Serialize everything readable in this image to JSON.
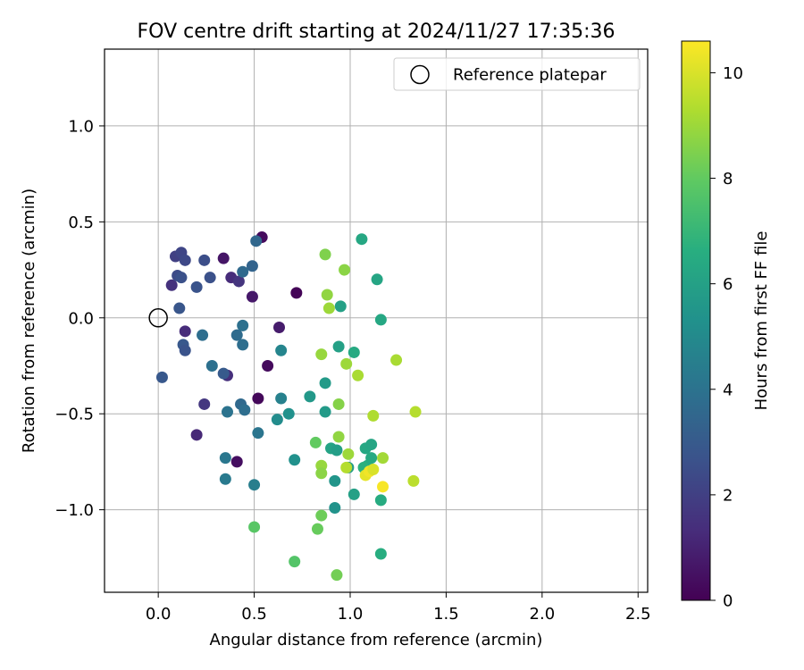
{
  "chart_data": {
    "type": "scatter",
    "title": "FOV centre drift starting at 2024/11/27 17:35:36",
    "xlabel": "Angular distance from reference (arcmin)",
    "ylabel": "Rotation from reference (arcmin)",
    "xlim": [
      -0.28,
      2.55
    ],
    "ylim": [
      -1.43,
      1.4
    ],
    "xticks": [
      0.0,
      0.5,
      1.0,
      1.5,
      2.0,
      2.5
    ],
    "xtick_labels": [
      "0.0",
      "0.5",
      "1.0",
      "1.5",
      "2.0",
      "2.5"
    ],
    "yticks": [
      -1.0,
      -0.5,
      0.0,
      0.5,
      1.0
    ],
    "ytick_labels": [
      "−1.0",
      "−0.5",
      "0.0",
      "0.5",
      "1.0"
    ],
    "grid": true,
    "legend": {
      "placement": "top-right",
      "entries": [
        "Reference platepar"
      ]
    },
    "reference": {
      "x": 0.0,
      "y": 0.0,
      "marker": "open-circle"
    },
    "colorbar": {
      "label": "Hours from first FF file",
      "colormap": "viridis",
      "range": [
        0,
        10.6
      ],
      "ticks": [
        0,
        2,
        4,
        6,
        8,
        10
      ],
      "tick_labels": [
        "0",
        "2",
        "4",
        "6",
        "8",
        "10"
      ]
    },
    "points": [
      {
        "x": 0.54,
        "y": 0.42,
        "c": 0.3
      },
      {
        "x": 0.72,
        "y": 0.13,
        "c": 0.1
      },
      {
        "x": 0.34,
        "y": 0.31,
        "c": 0.6
      },
      {
        "x": 0.49,
        "y": 0.11,
        "c": 0.7
      },
      {
        "x": 0.63,
        "y": -0.05,
        "c": 0.8
      },
      {
        "x": 0.57,
        "y": -0.25,
        "c": 0.3
      },
      {
        "x": 0.52,
        "y": -0.42,
        "c": 0.2
      },
      {
        "x": 0.41,
        "y": -0.75,
        "c": 0.4
      },
      {
        "x": 0.2,
        "y": -0.61,
        "c": 1.2
      },
      {
        "x": 0.36,
        "y": -0.3,
        "c": 1.4
      },
      {
        "x": 0.14,
        "y": -0.07,
        "c": 1.3
      },
      {
        "x": 0.07,
        "y": 0.17,
        "c": 1.5
      },
      {
        "x": 0.38,
        "y": 0.21,
        "c": 1.3
      },
      {
        "x": 0.42,
        "y": 0.19,
        "c": 1.6
      },
      {
        "x": 0.24,
        "y": -0.45,
        "c": 1.7
      },
      {
        "x": 0.09,
        "y": 0.32,
        "c": 2.0
      },
      {
        "x": 0.12,
        "y": 0.34,
        "c": 2.2
      },
      {
        "x": 0.14,
        "y": 0.3,
        "c": 2.3
      },
      {
        "x": 0.24,
        "y": 0.3,
        "c": 2.5
      },
      {
        "x": 0.1,
        "y": 0.22,
        "c": 2.4
      },
      {
        "x": 0.12,
        "y": 0.21,
        "c": 2.6
      },
      {
        "x": 0.2,
        "y": 0.16,
        "c": 2.7
      },
      {
        "x": 0.27,
        "y": 0.21,
        "c": 2.6
      },
      {
        "x": 0.11,
        "y": 0.05,
        "c": 2.8
      },
      {
        "x": 0.13,
        "y": -0.14,
        "c": 2.9
      },
      {
        "x": 0.14,
        "y": -0.17,
        "c": 2.7
      },
      {
        "x": 0.02,
        "y": -0.31,
        "c": 2.9
      },
      {
        "x": 0.34,
        "y": -0.29,
        "c": 3.0
      },
      {
        "x": 0.51,
        "y": 0.4,
        "c": 3.5
      },
      {
        "x": 0.49,
        "y": 0.27,
        "c": 3.4
      },
      {
        "x": 0.44,
        "y": 0.24,
        "c": 3.6
      },
      {
        "x": 0.23,
        "y": -0.09,
        "c": 3.8
      },
      {
        "x": 0.41,
        "y": -0.09,
        "c": 3.7
      },
      {
        "x": 0.44,
        "y": -0.04,
        "c": 3.9
      },
      {
        "x": 0.44,
        "y": -0.14,
        "c": 3.8
      },
      {
        "x": 0.28,
        "y": -0.25,
        "c": 3.9
      },
      {
        "x": 0.43,
        "y": -0.45,
        "c": 3.6
      },
      {
        "x": 0.45,
        "y": -0.48,
        "c": 3.8
      },
      {
        "x": 0.36,
        "y": -0.49,
        "c": 4.0
      },
      {
        "x": 0.52,
        "y": -0.6,
        "c": 4.1
      },
      {
        "x": 0.35,
        "y": -0.73,
        "c": 4.2
      },
      {
        "x": 0.35,
        "y": -0.84,
        "c": 4.3
      },
      {
        "x": 0.5,
        "y": -0.87,
        "c": 4.5
      },
      {
        "x": 0.64,
        "y": -0.17,
        "c": 4.8
      },
      {
        "x": 0.64,
        "y": -0.42,
        "c": 4.6
      },
      {
        "x": 0.62,
        "y": -0.53,
        "c": 5.1
      },
      {
        "x": 0.68,
        "y": -0.5,
        "c": 5.3
      },
      {
        "x": 0.71,
        "y": -0.74,
        "c": 5.3
      },
      {
        "x": 0.79,
        "y": -0.41,
        "c": 5.6
      },
      {
        "x": 0.87,
        "y": -0.34,
        "c": 5.7
      },
      {
        "x": 0.87,
        "y": -0.49,
        "c": 5.7
      },
      {
        "x": 0.92,
        "y": -0.85,
        "c": 5.5
      },
      {
        "x": 0.92,
        "y": -0.99,
        "c": 5.4
      },
      {
        "x": 0.95,
        "y": 0.06,
        "c": 6.0
      },
      {
        "x": 0.94,
        "y": -0.15,
        "c": 6.0
      },
      {
        "x": 1.06,
        "y": 0.41,
        "c": 6.3
      },
      {
        "x": 1.14,
        "y": 0.2,
        "c": 6.2
      },
      {
        "x": 1.16,
        "y": -0.01,
        "c": 6.3
      },
      {
        "x": 1.02,
        "y": -0.18,
        "c": 6.4
      },
      {
        "x": 0.9,
        "y": -0.68,
        "c": 6.1
      },
      {
        "x": 0.93,
        "y": -0.69,
        "c": 5.9
      },
      {
        "x": 0.99,
        "y": -0.78,
        "c": 5.8
      },
      {
        "x": 1.02,
        "y": -0.92,
        "c": 6.0
      },
      {
        "x": 1.08,
        "y": -0.68,
        "c": 6.3
      },
      {
        "x": 1.11,
        "y": -0.66,
        "c": 6.2
      },
      {
        "x": 1.11,
        "y": -0.73,
        "c": 6.4
      },
      {
        "x": 1.09,
        "y": -0.77,
        "c": 6.5
      },
      {
        "x": 1.16,
        "y": -0.95,
        "c": 6.5
      },
      {
        "x": 1.16,
        "y": -1.23,
        "c": 6.6
      },
      {
        "x": 1.07,
        "y": -0.78,
        "c": 6.7
      },
      {
        "x": 0.5,
        "y": -1.09,
        "c": 7.8
      },
      {
        "x": 0.71,
        "y": -1.27,
        "c": 7.7
      },
      {
        "x": 0.82,
        "y": -0.65,
        "c": 8.0
      },
      {
        "x": 0.85,
        "y": -1.03,
        "c": 8.2
      },
      {
        "x": 0.83,
        "y": -1.1,
        "c": 8.1
      },
      {
        "x": 0.93,
        "y": -1.34,
        "c": 8.3
      },
      {
        "x": 0.87,
        "y": 0.33,
        "c": 8.5
      },
      {
        "x": 0.97,
        "y": 0.25,
        "c": 8.7
      },
      {
        "x": 0.88,
        "y": 0.12,
        "c": 8.8
      },
      {
        "x": 0.89,
        "y": 0.05,
        "c": 9.0
      },
      {
        "x": 0.85,
        "y": -0.19,
        "c": 8.9
      },
      {
        "x": 0.98,
        "y": -0.24,
        "c": 9.0
      },
      {
        "x": 1.04,
        "y": -0.3,
        "c": 9.2
      },
      {
        "x": 0.94,
        "y": -0.45,
        "c": 8.6
      },
      {
        "x": 0.94,
        "y": -0.62,
        "c": 8.8
      },
      {
        "x": 0.85,
        "y": -0.77,
        "c": 8.9
      },
      {
        "x": 0.85,
        "y": -0.81,
        "c": 8.7
      },
      {
        "x": 0.99,
        "y": -0.71,
        "c": 9.0
      },
      {
        "x": 0.98,
        "y": -0.78,
        "c": 9.4
      },
      {
        "x": 1.24,
        "y": -0.22,
        "c": 9.2
      },
      {
        "x": 1.12,
        "y": -0.51,
        "c": 9.3
      },
      {
        "x": 1.17,
        "y": -0.73,
        "c": 9.1
      },
      {
        "x": 1.34,
        "y": -0.49,
        "c": 9.4
      },
      {
        "x": 1.33,
        "y": -0.85,
        "c": 9.5
      },
      {
        "x": 1.08,
        "y": -0.82,
        "c": 10.2
      },
      {
        "x": 1.1,
        "y": -0.8,
        "c": 10.4
      },
      {
        "x": 1.12,
        "y": -0.79,
        "c": 10.0
      },
      {
        "x": 1.17,
        "y": -0.88,
        "c": 10.5
      }
    ]
  }
}
